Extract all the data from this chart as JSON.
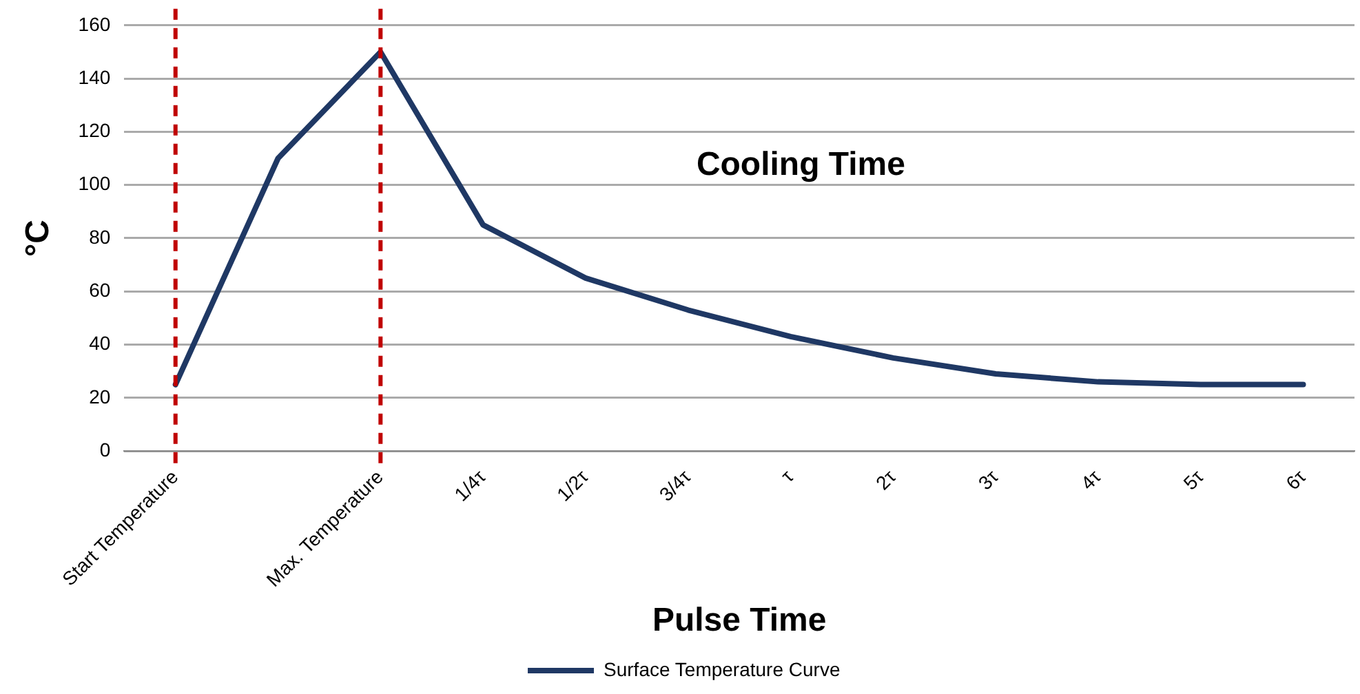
{
  "chart_data": {
    "type": "line",
    "xlabel": "Pulse Time",
    "ylabel": "°C",
    "categories": [
      "Start Temperature",
      null,
      "Max. Temperature",
      "1/4τ",
      "1/2τ",
      "3/4τ",
      "τ",
      "2τ",
      "3τ",
      "4τ",
      "5τ",
      "6τ"
    ],
    "series": [
      {
        "name": "Surface Temperature Curve",
        "color": "#1f3864",
        "values": [
          25,
          110,
          150,
          85,
          65,
          53,
          43,
          35,
          29,
          26,
          25,
          25
        ]
      }
    ],
    "ylim": [
      0,
      160
    ],
    "yticks": [
      0,
      20,
      40,
      60,
      80,
      100,
      120,
      140,
      160
    ],
    "grid": "y",
    "legend": "bottom",
    "marker": "none",
    "line_style": "solid",
    "ref_lines": [
      {
        "axis": "x",
        "value": "Start Temperature",
        "color": "#c00000",
        "line_style": "dashed"
      },
      {
        "axis": "x",
        "value": "Max. Temperature",
        "color": "#c00000",
        "line_style": "dashed"
      }
    ],
    "annotations": [
      "Cooling Time"
    ]
  }
}
